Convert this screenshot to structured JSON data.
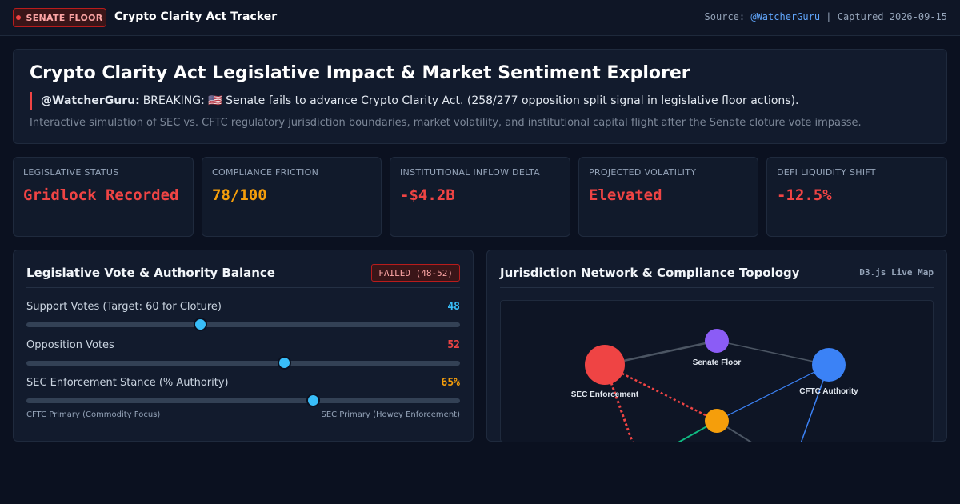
{
  "topbar": {
    "live_badge": "SENATE FLOOR",
    "app_title": "Crypto Clarity Act Tracker",
    "source_prefix": "Source: ",
    "source_handle": "@WatcherGuru",
    "captured_text": " | Captured 2026-09-15"
  },
  "hero": {
    "title": "Crypto Clarity Act Legislative Impact & Market Sentiment Explorer",
    "tweet_handle": "@WatcherGuru:",
    "tweet_text": "BREAKING: 🇺🇸 Senate fails to advance Crypto Clarity Act. (258/277 opposition split signal in legislative floor actions).",
    "description": "Interactive simulation of SEC vs. CFTC regulatory jurisdiction boundaries, market volatility, and institutional capital flight after the Senate cloture vote impasse."
  },
  "kpis": [
    {
      "label": "LEGISLATIVE STATUS",
      "value": "Gridlock Recorded",
      "color": "#ef4444"
    },
    {
      "label": "COMPLIANCE FRICTION",
      "value": "78/100",
      "color": "#f59e0b"
    },
    {
      "label": "INSTITUTIONAL INFLOW DELTA",
      "value": "-$4.2B",
      "color": "#ef4444"
    },
    {
      "label": "PROJECTED VOLATILITY",
      "value": "Elevated",
      "color": "#ef4444"
    },
    {
      "label": "DEFI LIQUIDITY SHIFT",
      "value": "-12.5%",
      "color": "#ef4444"
    }
  ],
  "vote_panel": {
    "title": "Legislative Vote & Authority Balance",
    "status_badge": "FAILED (48-52)",
    "sliders": [
      {
        "label": "Support Votes (Target: 60 for Cloture)",
        "value": "48",
        "fraction": 0.4,
        "value_color": "#38bdf8"
      },
      {
        "label": "Opposition Votes",
        "value": "52",
        "fraction": 0.595,
        "value_color": "#ef4444"
      },
      {
        "label": "SEC Enforcement Stance (% Authority)",
        "value": "65%",
        "fraction": 0.66,
        "value_color": "#f59e0b"
      }
    ],
    "scale_left": "CFTC Primary (Commodity Focus)",
    "scale_right": "SEC Primary (Howey Enforcement)"
  },
  "network_panel": {
    "title": "Jurisdiction Network & Compliance Topology",
    "tag": "D3.js Live Map",
    "nodes": [
      {
        "name": "SEC Enforcement",
        "color": "#ef4444"
      },
      {
        "name": "Senate Floor",
        "color": "#8b5cf6"
      },
      {
        "name": "CFTC Authority",
        "color": "#3b82f6"
      },
      {
        "name": "",
        "color": "#f59e0b"
      }
    ]
  }
}
